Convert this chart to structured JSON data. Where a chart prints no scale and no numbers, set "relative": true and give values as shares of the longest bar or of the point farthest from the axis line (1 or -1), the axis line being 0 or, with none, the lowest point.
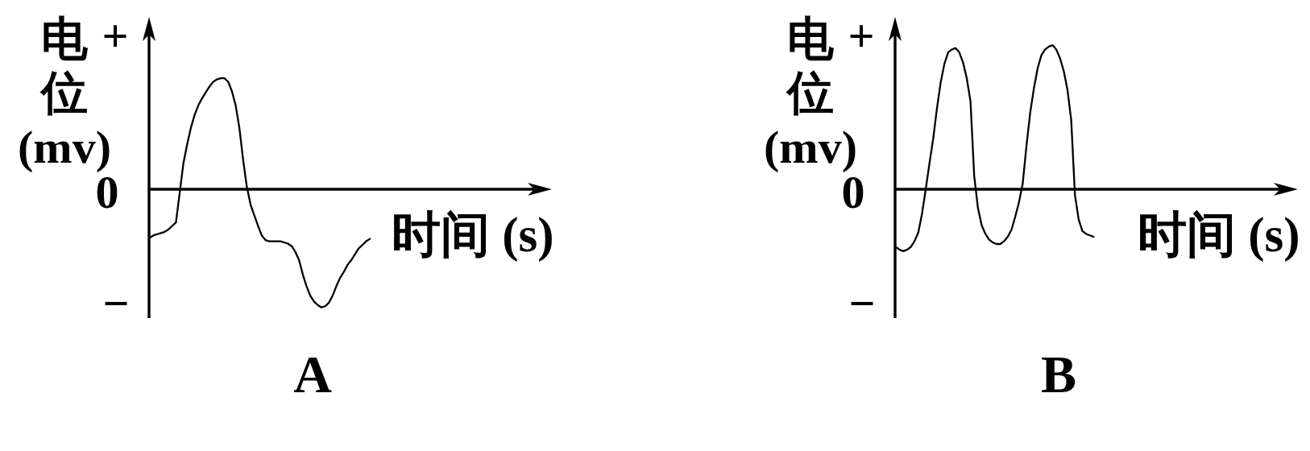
{
  "chart_data": [
    {
      "type": "line",
      "title": "A",
      "ylabel": "电位(mv)",
      "xlabel": "时间 (s)",
      "annotations": [
        "+",
        "0",
        "−"
      ],
      "relative": true,
      "color": "#000000",
      "categories": [
        null,
        null,
        null,
        null,
        null,
        null,
        null,
        null,
        null,
        null,
        null,
        null,
        null,
        null,
        null,
        null,
        null,
        null,
        null,
        null,
        null,
        null,
        null,
        null,
        null,
        null,
        null,
        null,
        null,
        null,
        null,
        null,
        null,
        null,
        null,
        null,
        null,
        null,
        null,
        null,
        null,
        null,
        null,
        null,
        null,
        null,
        null,
        null,
        null,
        null,
        null,
        null,
        null,
        null,
        null,
        null,
        null,
        null,
        null,
        null
      ],
      "values": [
        -0.41,
        -0.39,
        -0.38,
        -0.37,
        -0.36,
        -0.34,
        -0.31,
        -0.28,
        -0.03,
        0.22,
        0.38,
        0.52,
        0.63,
        0.71,
        0.77,
        0.82,
        0.87,
        0.91,
        0.93,
        0.94,
        0.94,
        0.91,
        0.83,
        0.71,
        0.52,
        0.25,
        0.02,
        -0.13,
        -0.22,
        -0.31,
        -0.39,
        -0.43,
        -0.44,
        -0.44,
        -0.44,
        -0.44,
        -0.45,
        -0.46,
        -0.48,
        -0.53,
        -0.6,
        -0.72,
        -0.82,
        -0.9,
        -0.95,
        -0.98,
        -1,
        -0.99,
        -0.96,
        -0.9,
        -0.82,
        -0.75,
        -0.7,
        -0.64,
        -0.6,
        -0.55,
        -0.5,
        -0.47,
        -0.44,
        -0.42
      ]
    },
    {
      "type": "line",
      "title": "B",
      "ylabel": "电位(mv)",
      "xlabel": "时间 (s)",
      "annotations": [
        "+",
        "0",
        "−"
      ],
      "relative": true,
      "color": "#000000",
      "categories": [
        null,
        null,
        null,
        null,
        null,
        null,
        null,
        null,
        null,
        null,
        null,
        null,
        null,
        null,
        null,
        null,
        null,
        null,
        null,
        null,
        null,
        null,
        null,
        null,
        null,
        null,
        null,
        null,
        null,
        null,
        null,
        null,
        null,
        null,
        null,
        null,
        null,
        null,
        null,
        null,
        null,
        null,
        null,
        null,
        null,
        null,
        null,
        null,
        null,
        null,
        null,
        null,
        null,
        null
      ],
      "values": [
        -0.4,
        -0.42,
        -0.43,
        -0.42,
        -0.4,
        -0.36,
        -0.3,
        -0.17,
        0,
        0.18,
        0.35,
        0.56,
        0.74,
        0.87,
        0.95,
        0.97,
        0.98,
        0.95,
        0.88,
        0.77,
        0.61,
        0.09,
        -0.13,
        -0.25,
        -0.31,
        -0.35,
        -0.37,
        -0.38,
        -0.38,
        -0.36,
        -0.33,
        -0.28,
        -0.19,
        -0.09,
        0.04,
        0.3,
        0.53,
        0.7,
        0.84,
        0.93,
        0.97,
        0.99,
        1,
        0.97,
        0.91,
        0.82,
        0.69,
        0.48,
        -0.04,
        -0.21,
        -0.29,
        -0.31,
        -0.32,
        -0.33
      ]
    }
  ]
}
